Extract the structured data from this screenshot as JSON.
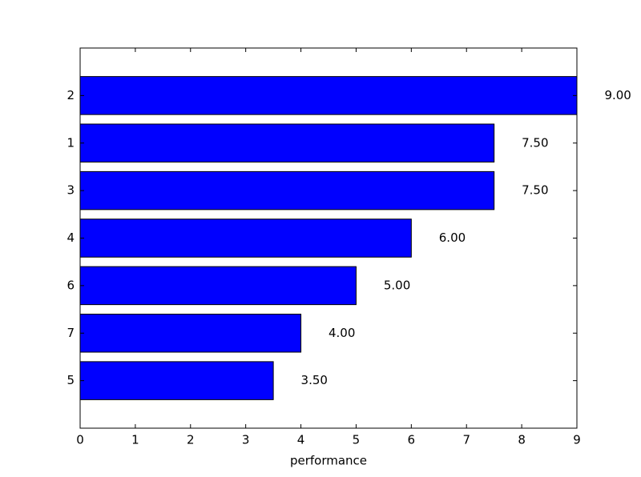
{
  "chart_data": {
    "type": "barh",
    "categories": [
      "2",
      "1",
      "3",
      "4",
      "6",
      "7",
      "5"
    ],
    "values": [
      9,
      7.5,
      7.5,
      6,
      5,
      4,
      3.5
    ],
    "value_labels": [
      "9.00",
      "7.50",
      "7.50",
      "6.00",
      "5.00",
      "4.00",
      "3.50"
    ],
    "color": "#0000ff",
    "x_label": "performance",
    "xlim": [
      0,
      9
    ],
    "xticks": [
      0,
      1,
      2,
      3,
      4,
      5,
      6,
      7,
      8,
      9
    ]
  }
}
